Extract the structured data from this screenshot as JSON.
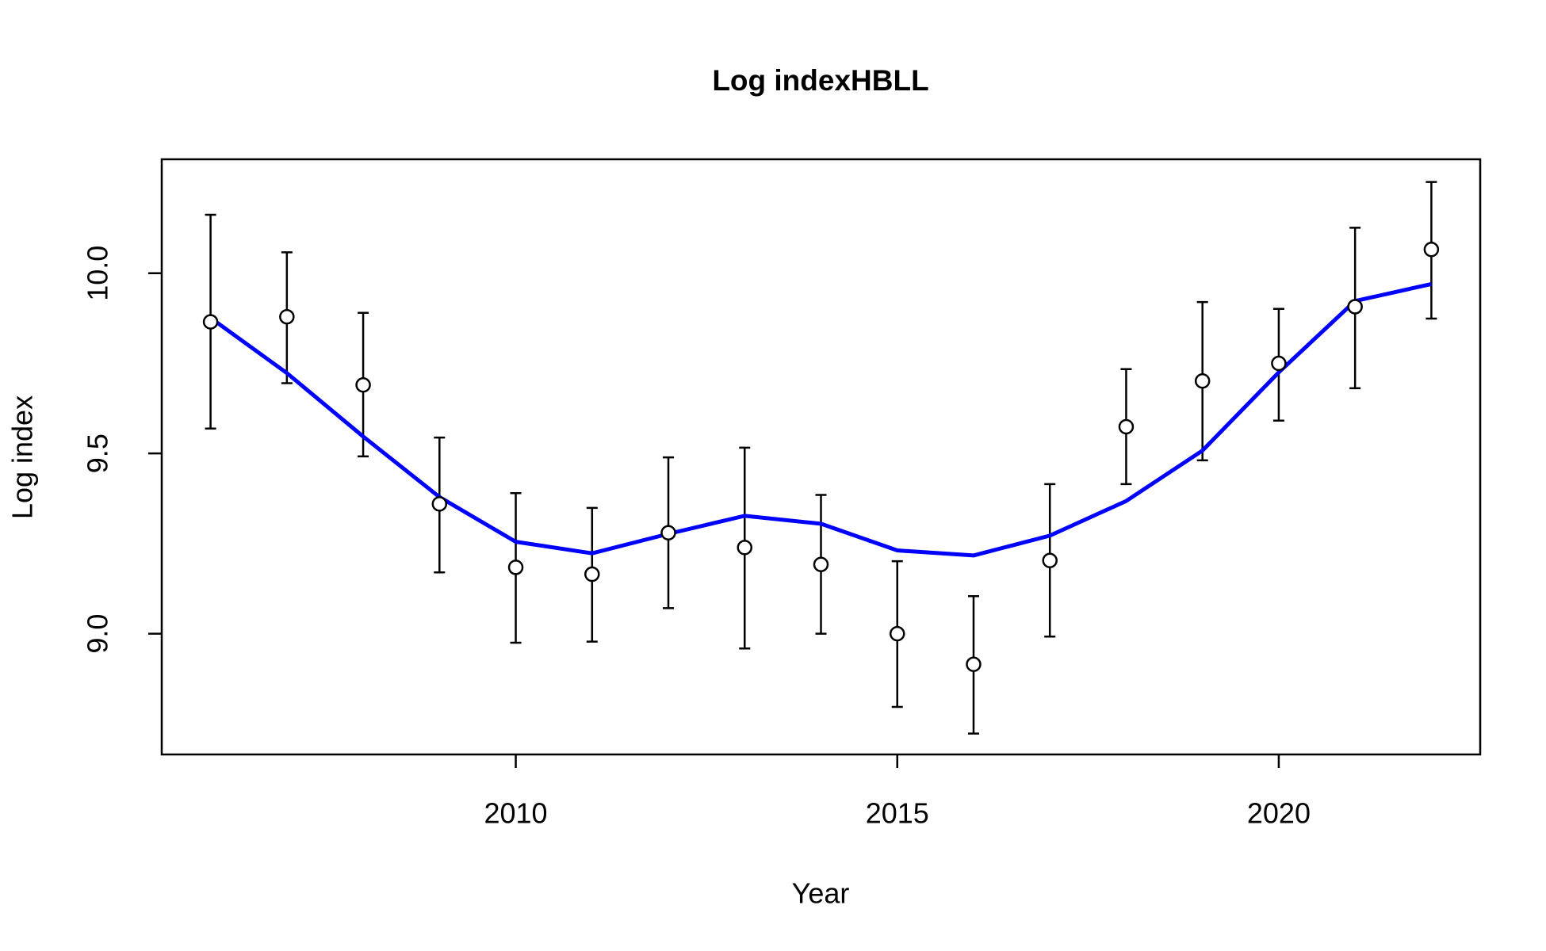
{
  "chart_data": {
    "type": "line",
    "title": "Log indexHBLL",
    "x_label": "Year",
    "y_label": "Log index",
    "x": [
      2006,
      2007,
      2008,
      2009,
      2010,
      2011,
      2012,
      2013,
      2014,
      2015,
      2016,
      2017,
      2018,
      2019,
      2020,
      2021,
      2022
    ],
    "observed": {
      "color": "#000000",
      "values": [
        9.865,
        9.879,
        9.69,
        9.36,
        9.184,
        9.165,
        9.28,
        9.239,
        9.192,
        9.0,
        8.915,
        9.203,
        9.574,
        9.701,
        9.75,
        9.907,
        10.066
      ],
      "lower": [
        9.569,
        9.695,
        9.492,
        9.17,
        8.975,
        8.978,
        9.071,
        8.959,
        9.0,
        8.797,
        8.723,
        8.992,
        9.415,
        9.481,
        9.591,
        9.681,
        9.874
      ],
      "upper": [
        10.162,
        10.058,
        9.89,
        9.544,
        9.39,
        9.349,
        9.489,
        9.516,
        9.385,
        9.201,
        9.104,
        9.415,
        9.734,
        9.92,
        9.901,
        10.126,
        10.253
      ]
    },
    "fitted": {
      "color": "#0000ff",
      "values": [
        9.876,
        9.723,
        9.547,
        9.379,
        9.255,
        9.223,
        9.277,
        9.327,
        9.305,
        9.231,
        9.217,
        9.272,
        9.368,
        9.508,
        9.725,
        9.923,
        9.97
      ]
    },
    "xlim": [
      2005.36,
      2022.64
    ],
    "ylim": [
      8.665,
      10.316
    ],
    "xticks": [
      2010,
      2015,
      2020
    ],
    "yticks": [
      {
        "value": 9,
        "label": "9.0"
      },
      9.5,
      {
        "value": 10,
        "label": "10.0"
      }
    ]
  }
}
